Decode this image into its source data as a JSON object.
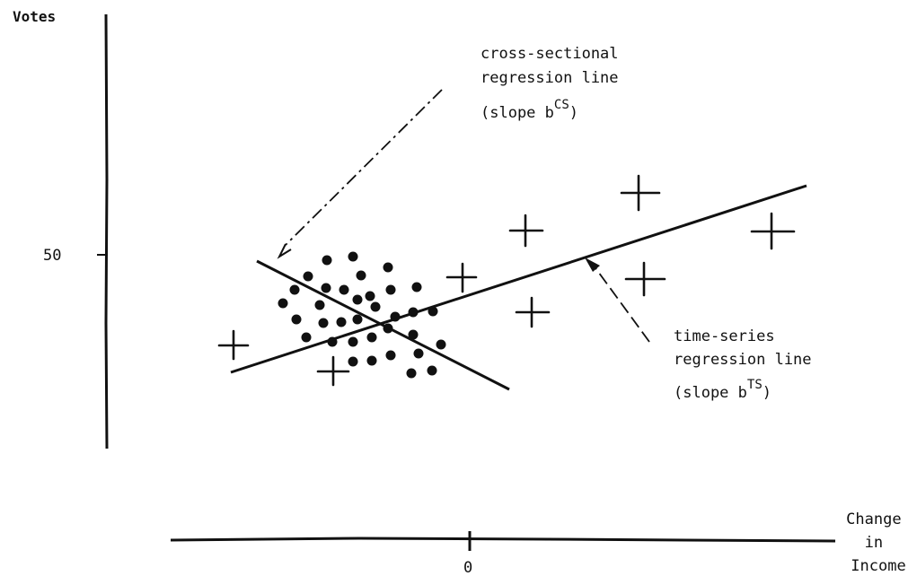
{
  "figure": {
    "y_axis": {
      "label": "Votes",
      "tick_label": "50"
    },
    "x_axis": {
      "label_lines": [
        "Change",
        "in",
        "Income"
      ],
      "tick_label": "0"
    },
    "cross_sectional_line": {
      "label_lines": [
        "cross-sectional",
        "regression line"
      ],
      "slope_prefix": "(slope b",
      "slope_superscript": "CS",
      "slope_suffix": ")"
    },
    "time_series_line": {
      "label_lines": [
        "time-series",
        "regression line"
      ],
      "slope_prefix": "(slope b",
      "slope_superscript": "TS",
      "slope_suffix": ")"
    }
  }
}
